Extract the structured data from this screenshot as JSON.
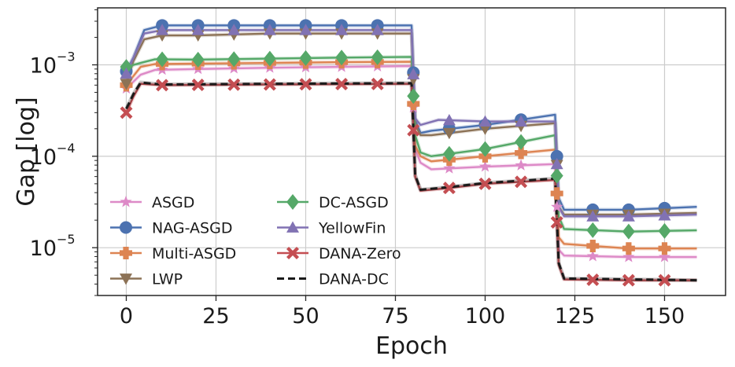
{
  "chart_data": {
    "type": "line",
    "title": "",
    "xlabel": "Epoch",
    "ylabel": "Gap [log]",
    "xlim": [
      -8,
      167
    ],
    "ylim": [
      3e-06,
      0.0042
    ],
    "yscale": "log",
    "grid": true,
    "legend_position": "lower-left",
    "x_ticks": [
      0,
      25,
      50,
      75,
      100,
      125,
      150
    ],
    "y_ticks": [
      {
        "value": 0.001,
        "base": "10",
        "exp": "−3"
      },
      {
        "value": 0.0001,
        "base": "10",
        "exp": "−4"
      },
      {
        "value": 1e-05,
        "base": "10",
        "exp": "−5"
      }
    ],
    "series": [
      {
        "name": "ASGD",
        "color": "#dd8ac7",
        "marker": "star",
        "linestyle": "solid",
        "points": [
          [
            0,
            0.00055
          ],
          [
            4,
            0.00078
          ],
          [
            8,
            0.00088
          ],
          [
            20,
            0.0009
          ],
          [
            40,
            0.00093
          ],
          [
            60,
            0.00095
          ],
          [
            79.5,
            0.00097
          ],
          [
            80.5,
            0.00012
          ],
          [
            82,
            8.5e-05
          ],
          [
            85,
            7.2e-05
          ],
          [
            100,
            7.7e-05
          ],
          [
            119.5,
            8.2e-05
          ],
          [
            120.5,
            9.5e-06
          ],
          [
            122,
            8.2e-06
          ],
          [
            140,
            7.9e-06
          ],
          [
            159,
            7.9e-06
          ]
        ],
        "markers_x": [
          0,
          10,
          20,
          30,
          40,
          50,
          60,
          70,
          80,
          90,
          100,
          110,
          120,
          130,
          140,
          150
        ]
      },
      {
        "name": "NAG-ASGD",
        "color": "#4c72b0",
        "marker": "circle",
        "linestyle": "solid",
        "points": [
          [
            0,
            0.00085
          ],
          [
            2,
            0.0012
          ],
          [
            5,
            0.0024
          ],
          [
            10,
            0.0027
          ],
          [
            20,
            0.0027
          ],
          [
            40,
            0.0027
          ],
          [
            60,
            0.0027
          ],
          [
            79.5,
            0.0027
          ],
          [
            80.5,
            0.00025
          ],
          [
            82,
            0.00018
          ],
          [
            85,
            0.00019
          ],
          [
            100,
            0.00022
          ],
          [
            119.5,
            0.000285
          ],
          [
            120.5,
            3.5e-05
          ],
          [
            122,
            2.6e-05
          ],
          [
            140,
            2.6e-05
          ],
          [
            159,
            2.8e-05
          ]
        ],
        "markers_x": [
          0,
          10,
          20,
          30,
          40,
          50,
          60,
          70,
          80,
          90,
          100,
          110,
          120,
          130,
          140,
          150
        ]
      },
      {
        "name": "Multi-ASGD",
        "color": "#dd8452",
        "marker": "plus",
        "linestyle": "solid",
        "points": [
          [
            0,
            0.0006
          ],
          [
            4,
            0.00095
          ],
          [
            8,
            0.00102
          ],
          [
            20,
            0.00103
          ],
          [
            40,
            0.00105
          ],
          [
            60,
            0.00107
          ],
          [
            79.5,
            0.00108
          ],
          [
            80.5,
            0.00013
          ],
          [
            82,
            0.0001
          ],
          [
            85,
            8.8e-05
          ],
          [
            100,
            0.0001
          ],
          [
            119.5,
            0.000118
          ],
          [
            120.5,
            1.3e-05
          ],
          [
            122,
            1.1e-05
          ],
          [
            140,
            9.8e-06
          ],
          [
            159,
            9.8e-06
          ]
        ],
        "markers_x": [
          0,
          10,
          20,
          30,
          40,
          50,
          60,
          70,
          80,
          90,
          100,
          110,
          120,
          130,
          140,
          150
        ]
      },
      {
        "name": "LWP",
        "color": "#8c7256",
        "marker": "triangle-down",
        "linestyle": "solid",
        "points": [
          [
            0,
            0.00062
          ],
          [
            2,
            0.0011
          ],
          [
            5,
            0.0019
          ],
          [
            10,
            0.0021
          ],
          [
            20,
            0.0021
          ],
          [
            40,
            0.0022
          ],
          [
            60,
            0.0022
          ],
          [
            79.5,
            0.0022
          ],
          [
            80.5,
            0.00022
          ],
          [
            82,
            0.00017
          ],
          [
            85,
            0.00017
          ],
          [
            100,
            0.0002
          ],
          [
            119.5,
            0.00023
          ],
          [
            120.5,
            2.8e-05
          ],
          [
            122,
            2.3e-05
          ],
          [
            140,
            2.3e-05
          ],
          [
            159,
            2.4e-05
          ]
        ],
        "markers_x": [
          0,
          10,
          20,
          30,
          40,
          50,
          60,
          70,
          80,
          90,
          100,
          110,
          120,
          130,
          140,
          150
        ]
      },
      {
        "name": "DC-ASGD",
        "color": "#55a868",
        "marker": "diamond",
        "linestyle": "solid",
        "points": [
          [
            0,
            0.00095
          ],
          [
            4,
            0.00105
          ],
          [
            8,
            0.00115
          ],
          [
            20,
            0.00114
          ],
          [
            40,
            0.00117
          ],
          [
            60,
            0.0012
          ],
          [
            79.5,
            0.00122
          ],
          [
            80.5,
            0.00017
          ],
          [
            82,
            0.00011
          ],
          [
            85,
            0.0001
          ],
          [
            100,
            0.00012
          ],
          [
            119.5,
            0.00017
          ],
          [
            120.5,
            2.2e-05
          ],
          [
            122,
            1.6e-05
          ],
          [
            140,
            1.5e-05
          ],
          [
            159,
            1.55e-05
          ]
        ],
        "markers_x": [
          0,
          10,
          20,
          30,
          40,
          50,
          60,
          70,
          80,
          90,
          100,
          110,
          120,
          130,
          140,
          150
        ]
      },
      {
        "name": "YellowFin",
        "color": "#8172b3",
        "marker": "triangle-up",
        "linestyle": "solid",
        "points": [
          [
            0,
            0.0008
          ],
          [
            2,
            0.0012
          ],
          [
            5,
            0.0022
          ],
          [
            10,
            0.0024
          ],
          [
            20,
            0.0024
          ],
          [
            40,
            0.0024
          ],
          [
            60,
            0.0024
          ],
          [
            79.5,
            0.0024
          ],
          [
            80.5,
            0.00026
          ],
          [
            82,
            0.00022
          ],
          [
            87,
            0.00025
          ],
          [
            100,
            0.00024
          ],
          [
            119.5,
            0.00024
          ],
          [
            120.5,
            2.8e-05
          ],
          [
            122,
            2.2e-05
          ],
          [
            140,
            2.2e-05
          ],
          [
            159,
            2.3e-05
          ]
        ],
        "markers_x": [
          0,
          10,
          20,
          30,
          40,
          50,
          60,
          70,
          80,
          90,
          100,
          110,
          120,
          130,
          140,
          150
        ]
      },
      {
        "name": "DANA-Zero",
        "color": "#c44e52",
        "marker": "x",
        "linestyle": "solid",
        "points": [
          [
            0,
            0.0003
          ],
          [
            2,
            0.00045
          ],
          [
            4,
            0.00062
          ],
          [
            10,
            0.0006
          ],
          [
            40,
            0.00061
          ],
          [
            79.5,
            0.00062
          ],
          [
            80.5,
            6e-05
          ],
          [
            82,
            4.2e-05
          ],
          [
            90,
            4.5e-05
          ],
          [
            100,
            5e-05
          ],
          [
            119.5,
            5.5e-05
          ],
          [
            120.5,
            6.5e-06
          ],
          [
            122,
            4.5e-06
          ],
          [
            140,
            4.4e-06
          ],
          [
            159,
            4.4e-06
          ]
        ],
        "markers_x": [
          0,
          10,
          20,
          30,
          40,
          50,
          60,
          70,
          80,
          90,
          100,
          110,
          120,
          130,
          140,
          150
        ]
      },
      {
        "name": "DANA-DC",
        "color": "#1a1a1a",
        "marker": "none",
        "linestyle": "dashed",
        "points": [
          [
            0,
            0.00033
          ],
          [
            2,
            0.00048
          ],
          [
            4,
            0.00064
          ],
          [
            10,
            0.00061
          ],
          [
            40,
            0.00062
          ],
          [
            79.5,
            0.00063
          ],
          [
            80.5,
            6.2e-05
          ],
          [
            82,
            4.3e-05
          ],
          [
            90,
            4.6e-05
          ],
          [
            100,
            5.1e-05
          ],
          [
            119.5,
            5.7e-05
          ],
          [
            120.5,
            6.8e-06
          ],
          [
            122,
            4.6e-06
          ],
          [
            140,
            4.5e-06
          ],
          [
            159,
            4.4e-06
          ]
        ],
        "markers_x": []
      }
    ]
  }
}
